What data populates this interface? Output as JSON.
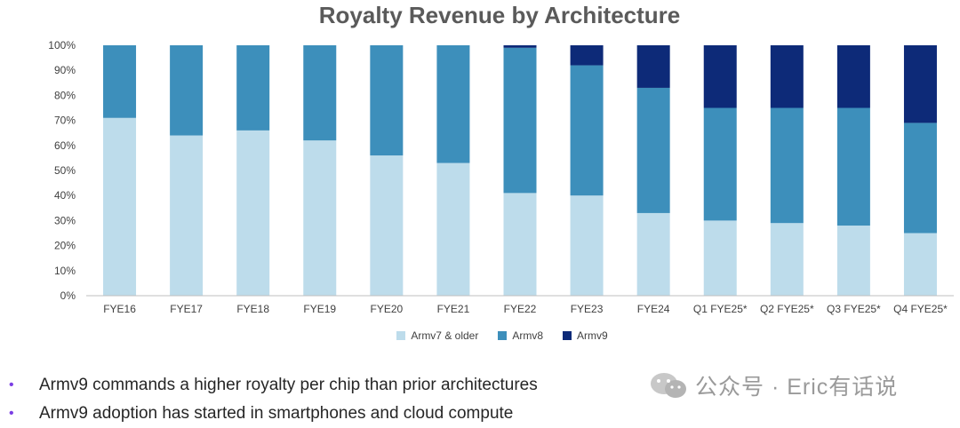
{
  "chart_data": {
    "type": "bar",
    "stacked": true,
    "title": "Royalty Revenue by Architecture",
    "xlabel": "",
    "ylabel": "",
    "ylim": [
      0,
      100
    ],
    "ytick_labels": [
      "0%",
      "10%",
      "20%",
      "30%",
      "40%",
      "50%",
      "60%",
      "70%",
      "80%",
      "90%",
      "100%"
    ],
    "categories": [
      "FYE16",
      "FYE17",
      "FYE18",
      "FYE19",
      "FYE20",
      "FYE21",
      "FYE22",
      "FYE23",
      "FYE24",
      "Q1 FYE25*",
      "Q2 FYE25*",
      "Q3 FYE25*",
      "Q4 FYE25*"
    ],
    "series": [
      {
        "name": "Armv7 & older",
        "color": "#bddceb",
        "values": [
          71,
          64,
          66,
          62,
          56,
          53,
          41,
          40,
          33,
          30,
          29,
          28,
          25
        ]
      },
      {
        "name": "Armv8",
        "color": "#3d8fbb",
        "values": [
          29,
          36,
          34,
          38,
          44,
          47,
          58,
          52,
          50,
          45,
          46,
          47,
          44
        ]
      },
      {
        "name": "Armv9",
        "color": "#0d2a78",
        "values": [
          0,
          0,
          0,
          0,
          0,
          0,
          1,
          8,
          17,
          25,
          25,
          25,
          31
        ]
      }
    ],
    "legend_position": "bottom"
  },
  "bullets": [
    "Armv9 commands a higher royalty per chip than prior architectures",
    "Armv9 adoption has started in smartphones and cloud compute"
  ],
  "bullet_symbol": "•",
  "watermark": "公众号 · Eric有话说"
}
